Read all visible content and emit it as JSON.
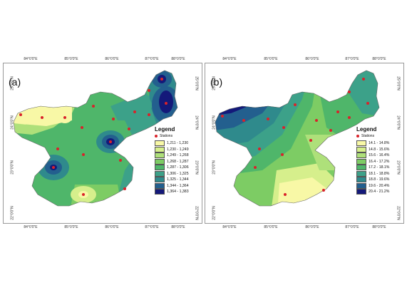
{
  "figure": {
    "panels": [
      {
        "label": "(a)",
        "top_ticks": [
          "84°0'0\"E",
          "85°0'0\"E",
          "86°0'0\"E",
          "87°0'0\"E",
          "88°0'0\"E"
        ],
        "bottom_ticks": [
          "84°0'0\"E",
          "85°0'0\"E",
          "86°0'0\"E",
          "87°0'0\"E",
          "88°0'0\"E"
        ],
        "left_ticks": [
          "25°0'0\"N",
          "24°0'0\"N",
          "23°0'0\"N",
          "22°0'0\"N"
        ],
        "right_ticks": [
          "25°0'0\"N",
          "24°0'0\"N",
          "23°0'0\"N",
          "22°0'0\"N"
        ],
        "legend": {
          "title": "Legend",
          "stations_label": "Stations",
          "classes": [
            {
              "label": "1,211 - 1,230",
              "color": "#f8f8a6"
            },
            {
              "label": "1,230 - 1,249",
              "color": "#d6ef8c"
            },
            {
              "label": "1,249 - 1,268",
              "color": "#aee07a"
            },
            {
              "label": "1,268 - 1,287",
              "color": "#7dcc64"
            },
            {
              "label": "1,287 - 1,306",
              "color": "#4fb66a"
            },
            {
              "label": "1,306 - 1,325",
              "color": "#3ca189"
            },
            {
              "label": "1,325 - 1,344",
              "color": "#2f8a8c"
            },
            {
              "label": "1,344 - 1,364",
              "color": "#235f8e"
            },
            {
              "label": "1,364 - 1,383",
              "color": "#14197a"
            }
          ]
        }
      },
      {
        "label": "(b)",
        "top_ticks": [
          "84°0'0\"E",
          "85°0'0\"E",
          "86°0'0\"E",
          "87°0'0\"E",
          "88°0'0\"E"
        ],
        "bottom_ticks": [
          "84°0'0\"E",
          "85°0'0\"E",
          "86°0'0\"E",
          "87°0'0\"E",
          "88°0'0\"E"
        ],
        "left_ticks": [
          "25°0'0\"N",
          "24°0'0\"N",
          "23°0'0\"N",
          "22°0'0\"N"
        ],
        "right_ticks": [
          "25°0'0\"N",
          "24°0'0\"N",
          "23°0'0\"N",
          "22°0'0\"N"
        ],
        "legend": {
          "title": "Legend",
          "stations_label": "Stations",
          "classes": [
            {
              "label": "14.1 - 14.8%",
              "color": "#f8f8a6"
            },
            {
              "label": "14.8 - 15.6%",
              "color": "#d6ef8c"
            },
            {
              "label": "15.6 - 16.4%",
              "color": "#aee07a"
            },
            {
              "label": "16.4 - 17.2%",
              "color": "#7dcc64"
            },
            {
              "label": "17.2 - 18.1%",
              "color": "#4fb66a"
            },
            {
              "label": "18.1 - 18.8%",
              "color": "#3ca189"
            },
            {
              "label": "18.8 - 19.6%",
              "color": "#2f8a8c"
            },
            {
              "label": "19.6 - 20.4%",
              "color": "#235f8e"
            },
            {
              "label": "20.4 - 21.2%",
              "color": "#14197a"
            }
          ]
        }
      }
    ]
  }
}
